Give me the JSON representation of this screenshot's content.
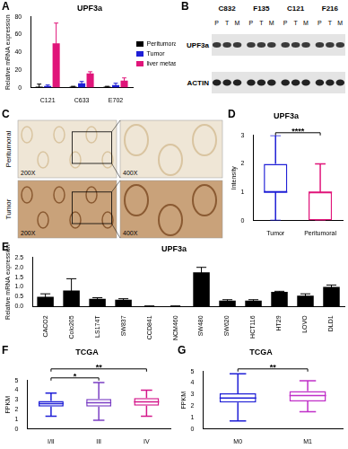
{
  "chart_data": [
    {
      "panel": "A",
      "type": "bar",
      "title": "UPF3a",
      "ylabel": "Relative mRNA expression",
      "categories": [
        "C121",
        "C633",
        "E702"
      ],
      "series": [
        {
          "name": "Peritumoral",
          "color": "#000000",
          "values": [
            1,
            1,
            1
          ],
          "errors": [
            3,
            0.5,
            0.5
          ]
        },
        {
          "name": "Tumor",
          "color": "#1f1fd6",
          "values": [
            2,
            5,
            3
          ],
          "errors": [
            1,
            2,
            2
          ]
        },
        {
          "name": "liver metastatic tissues",
          "color": "#e0157a",
          "values": [
            50,
            16,
            8
          ],
          "errors": [
            23,
            2,
            3
          ]
        }
      ],
      "ylim": [
        0,
        80
      ],
      "yticks": [
        0,
        20,
        40,
        60,
        80
      ],
      "grid": false,
      "legend": "right"
    },
    {
      "panel": "D",
      "type": "box",
      "title": "UPF3a",
      "ylabel": "Intensity",
      "categories": [
        "Tumor",
        "Peritumoral"
      ],
      "colors": [
        "#1f1fd6",
        "#e0157a"
      ],
      "boxes": [
        {
          "min": 0,
          "q1": 1,
          "median": 1,
          "q3": 2,
          "max": 3
        },
        {
          "min": 0,
          "q1": 0,
          "median": 1,
          "q3": 1,
          "max": 2
        }
      ],
      "ylim": [
        0,
        3
      ],
      "yticks": [
        0,
        1,
        2,
        3
      ],
      "grid": false,
      "annotations": [
        {
          "between": [
            "Tumor",
            "Peritumoral"
          ],
          "text": "****"
        }
      ]
    },
    {
      "panel": "E",
      "type": "bar",
      "title": "UPF3a",
      "ylabel": "Relative mRNA expression",
      "categories": [
        "CACO2",
        "Colo205",
        "LS174T",
        "SW837",
        "CCD841",
        "NCM460",
        "SW480",
        "SW620",
        "HCT116",
        "HT29",
        "LOVO",
        "DLD1"
      ],
      "values": [
        0.5,
        0.82,
        0.4,
        0.35,
        0.02,
        0.02,
        1.75,
        0.3,
        0.3,
        0.75,
        0.55,
        1.0
      ],
      "errors": [
        0.15,
        0.6,
        0.05,
        0.05,
        0.01,
        0.01,
        0.25,
        0.05,
        0.05,
        0.03,
        0.1,
        0.1
      ],
      "color": "#000000",
      "ylim": [
        0,
        2.5
      ],
      "yticks": [
        {
          "value": 0,
          "label": "0.0"
        },
        0.5,
        {
          "value": 1,
          "label": "1.0"
        },
        1.5,
        {
          "value": 2,
          "label": "2.0"
        },
        2.5
      ],
      "grid": false
    },
    {
      "panel": "F",
      "type": "box",
      "title": "TCGA",
      "ylabel": "FPKM",
      "categories": [
        "I/II",
        "III",
        "IV"
      ],
      "colors": [
        "#1f1fd6",
        "#7b3fc4",
        "#d4178a"
      ],
      "boxes": [
        {
          "min": 1.3,
          "q1": 2.3,
          "median": 2.6,
          "q3": 2.9,
          "max": 3.7
        },
        {
          "min": 0.9,
          "q1": 2.3,
          "median": 2.7,
          "q3": 3.1,
          "max": 4.8
        },
        {
          "min": 1.3,
          "q1": 2.4,
          "median": 2.8,
          "q3": 3.2,
          "max": 4.0
        }
      ],
      "ylim": [
        0,
        5
      ],
      "yticks": [
        0,
        1,
        2,
        3,
        4,
        5
      ],
      "grid": false,
      "annotations": [
        {
          "between": [
            "I/II",
            "III"
          ],
          "text": "*"
        },
        {
          "between": [
            "I/II",
            "IV"
          ],
          "text": "**"
        }
      ]
    },
    {
      "panel": "G",
      "type": "box",
      "title": "TCGA",
      "ylabel": "FPKM",
      "categories": [
        "M0",
        "M1"
      ],
      "colors": [
        "#1f1fd6",
        "#c02fc8"
      ],
      "boxes": [
        {
          "min": 0.7,
          "q1": 2.3,
          "median": 2.7,
          "q3": 3.1,
          "max": 4.8
        },
        {
          "min": 1.5,
          "q1": 2.4,
          "median": 2.9,
          "q3": 3.3,
          "max": 4.2
        }
      ],
      "ylim": [
        0,
        5
      ],
      "yticks": [
        0,
        1,
        2,
        3,
        4,
        5
      ],
      "grid": false,
      "annotations": [
        {
          "between": [
            "M0",
            "M1"
          ],
          "text": "**"
        }
      ]
    }
  ],
  "blot": {
    "panel": "B",
    "groups": [
      "C832",
      "F135",
      "C121",
      "F216"
    ],
    "lanes": [
      "P",
      "T",
      "M"
    ],
    "rows": [
      "UPF3a",
      "ACTIN"
    ]
  },
  "ihc": {
    "panel": "C",
    "rows": [
      "Peritumoral",
      "Tumor"
    ],
    "magnifications": [
      "200X",
      "400X"
    ]
  }
}
